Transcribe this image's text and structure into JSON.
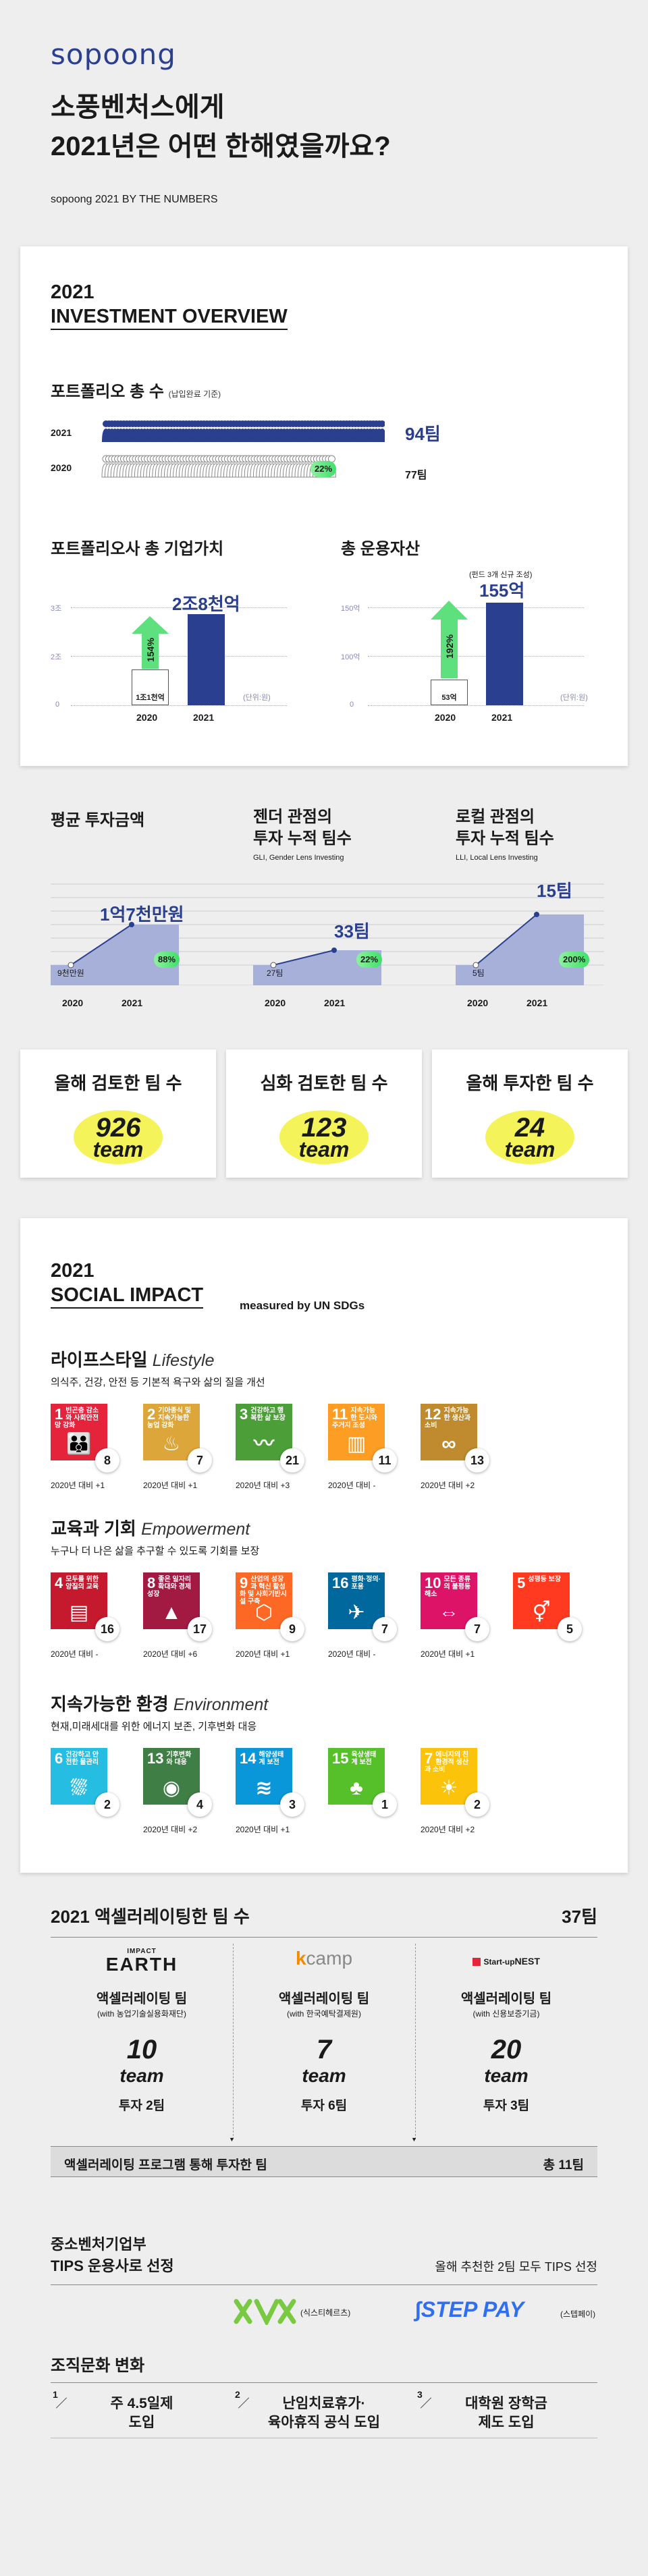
{
  "header": {
    "logo": "sopoong",
    "title_line1": "소풍벤처스에게",
    "title_line2": "2021년은 어떤 한해였을까요?",
    "subtitle": "sopoong 2021 BY THE NUMBERS"
  },
  "investment": {
    "title_line1": "2021",
    "title_line2": "INVESTMENT OVERVIEW",
    "portfolio": {
      "label": "포트폴리오 총 수",
      "note": "(납입완료 기준)",
      "year_2021": "2021",
      "year_2020": "2020",
      "count_2021": "94팀",
      "count_2020": "77팀",
      "growth": "22%"
    },
    "valuation": {
      "label": "포트폴리오사 총 기업가치",
      "axis": [
        "3조",
        "2조",
        "0"
      ],
      "unit": "(단위:원)",
      "value_2020": "1조1천억",
      "value_2021": "2조8천억",
      "growth": "154%",
      "year_2020": "2020",
      "year_2021": "2021"
    },
    "aum": {
      "label": "총 운용자산",
      "note": "(펀드 3개 신규 조성)",
      "axis": [
        "150억",
        "100억",
        "0"
      ],
      "unit": "(단위:원)",
      "value_2020": "53억",
      "value_2021": "155억",
      "growth": "192%",
      "year_2020": "2020",
      "year_2021": "2021"
    },
    "avg_investment": {
      "label": "평균 투자금액",
      "value_2020": "9천만원",
      "value_2021": "1억7천만원",
      "growth": "88%",
      "year_2020": "2020",
      "year_2021": "2021"
    },
    "gender_lens": {
      "label_line1": "젠더 관점의",
      "label_line2": "투자 누적 팀수",
      "sub": "GLI, Gender Lens Investing",
      "value_2020": "27팀",
      "value_2021": "33팀",
      "growth": "22%",
      "year_2020": "2020",
      "year_2021": "2021"
    },
    "local_lens": {
      "label_line1": "로컬 관점의",
      "label_line2": "투자 누적 팀수",
      "sub": "LLI, Local Lens Investing",
      "value_2020": "5팀",
      "value_2021": "15팀",
      "growth": "200%",
      "year_2020": "2020",
      "year_2021": "2021"
    },
    "stats": [
      {
        "title": "올해 검토한 팀 수",
        "num": "926",
        "unit": "team"
      },
      {
        "title": "심화 검토한 팀 수",
        "num": "123",
        "unit": "team"
      },
      {
        "title": "올해 투자한 팀 수",
        "num": "24",
        "unit": "team"
      }
    ]
  },
  "social": {
    "title_line1": "2021",
    "title_line2": "SOCIAL IMPACT",
    "measured": "measured by UN SDGs",
    "lifestyle": {
      "title": "라이프스타일",
      "title_en": "Lifestyle",
      "desc": "의식주, 건강, 안전 등 기본적 욕구와 삶의 질을 개선",
      "items": [
        {
          "num": "1",
          "label": "빈곤층 감소와 사회안전망 강화",
          "icon": "people-icon",
          "color": "#e5243b",
          "count": "8",
          "note": "2020년 대비 +1"
        },
        {
          "num": "2",
          "label": "기아종식 및 지속가능한 농업 강화",
          "icon": "bowl-icon",
          "color": "#dda63a",
          "count": "7",
          "note": "2020년 대비 +1"
        },
        {
          "num": "3",
          "label": "건강하고 행복한 삶 보장",
          "icon": "heartbeat-icon",
          "color": "#4c9f38",
          "count": "21",
          "note": "2020년 대비 +3"
        },
        {
          "num": "11",
          "label": "지속가능한 도시와 주거지 조성",
          "icon": "city-icon",
          "color": "#fd9d24",
          "count": "11",
          "note": "2020년 대비 -"
        },
        {
          "num": "12",
          "label": "지속가능한 생산과 소비",
          "icon": "infinity-icon",
          "color": "#bf8b2e",
          "count": "13",
          "note": "2020년 대비 +2"
        }
      ]
    },
    "education": {
      "title": "교육과 기회",
      "title_en": "Empowerment",
      "desc": "누구나 더 나은 삶을 추구할 수 있도록 기회를 보장",
      "items": [
        {
          "num": "4",
          "label": "모두를 위한 양질의 교육",
          "icon": "book-icon",
          "color": "#c5192d",
          "count": "16",
          "note": "2020년 대비 -"
        },
        {
          "num": "8",
          "label": "좋은 일자리 확대와 경제성장",
          "icon": "growth-icon",
          "color": "#a21942",
          "count": "17",
          "note": "2020년 대비 +6"
        },
        {
          "num": "9",
          "label": "산업의 성장과 혁신 활성화 및 사회기반시설 구축",
          "icon": "cubes-icon",
          "color": "#fd6925",
          "count": "9",
          "note": "2020년 대비 +1"
        },
        {
          "num": "16",
          "label": "평화·정의·포용",
          "icon": "dove-icon",
          "color": "#00689d",
          "count": "7",
          "note": "2020년 대비 -"
        },
        {
          "num": "10",
          "label": "모든 종류의 불평등 해소",
          "icon": "equality-icon",
          "color": "#dd1367",
          "count": "7",
          "note": "2020년 대비 +1"
        },
        {
          "num": "5",
          "label": "성평등 보장",
          "icon": "gender-icon",
          "color": "#ff3a21",
          "count": "5",
          "note": ""
        }
      ]
    },
    "environment": {
      "title": "지속가능한 환경",
      "title_en": "Environment",
      "desc": "현재,미래세대를 위한 에너지 보존, 기후변화 대응",
      "items": [
        {
          "num": "6",
          "label": "건강하고 안전한 물관리",
          "icon": "water-icon",
          "color": "#26bde2",
          "count": "2",
          "note": ""
        },
        {
          "num": "13",
          "label": "기후변화와 대응",
          "icon": "eye-icon",
          "color": "#3f7e44",
          "count": "4",
          "note": "2020년 대비 +2"
        },
        {
          "num": "14",
          "label": "해양생태계 보전",
          "icon": "fish-icon",
          "color": "#0a97d9",
          "count": "3",
          "note": "2020년 대비 +1"
        },
        {
          "num": "15",
          "label": "육상생태계 보전",
          "icon": "tree-icon",
          "color": "#56c02b",
          "count": "1",
          "note": ""
        },
        {
          "num": "7",
          "label": "에너지의 친환경적 생산과 소비",
          "icon": "sun-icon",
          "color": "#fcc30b",
          "count": "2",
          "note": "2020년 대비 +2"
        }
      ]
    }
  },
  "accelerating": {
    "title": "2021 액셀러레이팅한 팀 수",
    "total": "37팀",
    "programs": [
      {
        "logo_small": "IMPACT",
        "logo": "EARTH",
        "name": "액셀러레이팅 팀",
        "with": "(with 농업기술실용화재단)",
        "num": "10",
        "unit": "team",
        "invest": "투자 2팀"
      },
      {
        "logo_small": "",
        "logo": "camp",
        "name": "액셀러레이팅 팀",
        "with": "(with 한국예탁결제원)",
        "num": "7",
        "unit": "team",
        "invest": "투자 6팀"
      },
      {
        "logo_small": "Start-up",
        "logo": "NEST",
        "name": "액셀러레이팅 팀",
        "with": "(with 신용보증기금)",
        "num": "20",
        "unit": "team",
        "invest": "투자 3팀"
      }
    ],
    "footer_label": "액셀러레이팅 프로그램 통해 투자한 팀",
    "footer_total": "총 11팀"
  },
  "tips": {
    "title_line1": "중소벤처기업부",
    "title_line2": "TIPS 운용사로 선정",
    "note": "올해 추천한 2팀 모두 TIPS 선정",
    "team1": "(식스티헤르츠)",
    "team2_logo": "STEP PAY",
    "team2": "(스텝페이)"
  },
  "culture": {
    "title": "조직문화 변화",
    "items": [
      {
        "n": "1",
        "line1": "주 4.5일제",
        "line2": "도입"
      },
      {
        "n": "2",
        "line1": "난임치료휴가·",
        "line2": "육아휴직 공식 도입"
      },
      {
        "n": "3",
        "line1": "대학원 장학금",
        "line2": "제도 도입"
      }
    ]
  }
}
